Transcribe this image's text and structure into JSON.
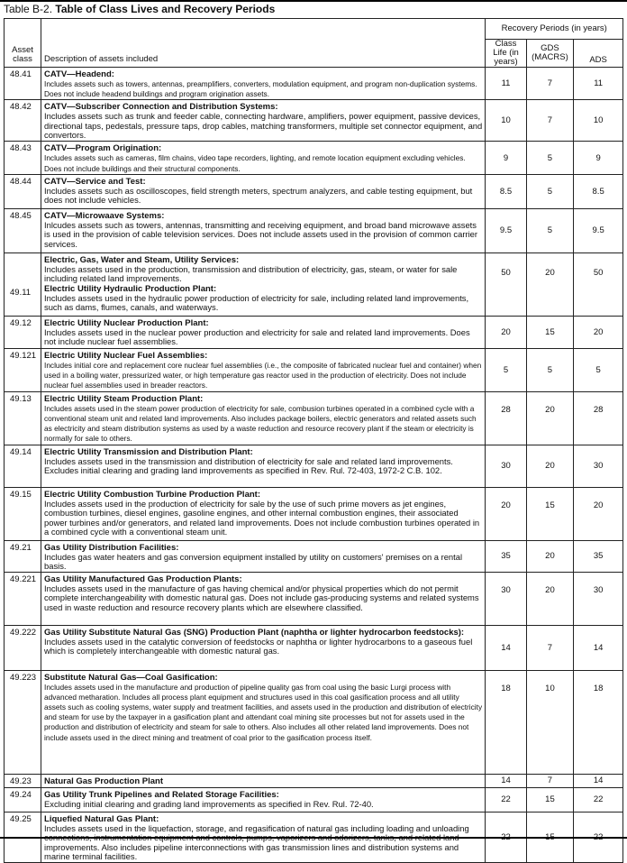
{
  "title": {
    "prefix": "Table B-2.",
    "main": "Table of Class Lives and Recovery Periods"
  },
  "columns": {
    "asset_class": "Asset class",
    "description": "Description of assets included",
    "recovery_group": "Recovery Periods (in years)",
    "class_life": "Class Life (in years)",
    "gds": "GDS (MACRS)",
    "ads": "ADS"
  },
  "rows": [
    {
      "asset_class": "48.41",
      "small": true,
      "blocks": [
        {
          "heading": "CATV—Headend:",
          "text": "Includes assets such as towers, antennas, preamplifiers, converters, modulation equipment, and program non-duplication systems. Does not include headend buildings and program origination assets."
        }
      ],
      "class_life": "11",
      "gds": "7",
      "ads": "11"
    },
    {
      "asset_class": "48.42",
      "blocks": [
        {
          "heading": "CATV—Subscriber Connection and Distribution Systems:",
          "text": "Includes assets such as trunk and feeder cable, connecting hardware, amplifiers, power equipment, passive devices, directional taps, pedestals, pressure taps, drop cables, matching transformers, multiple set connector equipment, and convertors."
        }
      ],
      "class_life": "10",
      "gds": "7",
      "ads": "10"
    },
    {
      "asset_class": "48.43",
      "small": true,
      "blocks": [
        {
          "heading": "CATV—Program Origination:",
          "text": "Includes assets such as cameras, film chains, video tape recorders, lighting, and remote location equipment excluding vehicles. Does not include buildings and their structural components."
        }
      ],
      "class_life": "9",
      "gds": "5",
      "ads": "9"
    },
    {
      "asset_class": "48.44",
      "blocks": [
        {
          "heading": "CATV—Service and Test:",
          "text": "Includes assets such as oscilloscopes, field strength meters, spectrum analyzers, and cable testing equipment, but does not include vehicles."
        }
      ],
      "class_life": "8.5",
      "gds": "5",
      "ads": "8.5"
    },
    {
      "asset_class": "48.45",
      "blocks": [
        {
          "heading": "CATV—Microwaave Systems:",
          "text": "Inlcudes assets such as towers, antennas, transmitting and receiving equipment, and broad band microwave assets is used in the provision of cable television services. Does not include assets used in the provision of common carrier services."
        }
      ],
      "class_life": "9.5",
      "gds": "5",
      "ads": "9.5"
    },
    {
      "asset_class": "49.11",
      "blocks": [
        {
          "heading": "Electric, Gas, Water and Steam, Utility Services:",
          "text": "Includes assets used in the production, transmission and distribution of electricity, gas, steam, or water for sale including related land improvements."
        },
        {
          "heading": "Electric Utility Hydraulic Production Plant:",
          "text": "Includes assets used in the hydraulic power production of electricity for sale, including related land improvements, such as dams, flumes, canals, and waterways."
        }
      ],
      "class_life": "50",
      "gds": "20",
      "ads": "50"
    },
    {
      "asset_class": "49.12",
      "blocks": [
        {
          "heading": "Electric Utility Nuclear Production Plant:",
          "text": "Includes assets used in the nuclear power production and electricity for sale and related land improvements. Does not include nuclear fuel assemblies."
        }
      ],
      "class_life": "20",
      "gds": "15",
      "ads": "20"
    },
    {
      "asset_class": "49.121",
      "small": true,
      "blocks": [
        {
          "heading": "Electric Utility Nuclear Fuel Assemblies:",
          "text": "Includes initial core and replacement core nuclear fuel assemblies (i.e., the composite of fabricated nuclear fuel and container) when used in a boiling water, pressurized water, or high temperature gas reactor used in the production of electricity. Does not include nuclear fuel assemblies used in breader reactors."
        }
      ],
      "class_life": "5",
      "gds": "5",
      "ads": "5"
    },
    {
      "asset_class": "49.13",
      "small": true,
      "blocks": [
        {
          "heading": "Electric Utility Steam Production Plant:",
          "text": "Includes assets used in the steam power production of electricity for sale, combusion turbines operated in a combined cycle with a conventional steam unit and related land improvements. Also includes package boilers, electric generators and related assets such as electricity and steam distribution systems as used by a waste reduction and resource recovery plant if the steam or electricity is normally for sale to others."
        }
      ],
      "class_life": "28",
      "gds": "20",
      "ads": "28"
    },
    {
      "asset_class": "49.14",
      "blocks": [
        {
          "heading": "Electric Utility Transmission and Distribution Plant:",
          "text": "Includes assets used in the transmission and distribution of electricity for sale and related land improvements. Excludes initial clearing and grading land improvements as specified in Rev. Rul. 72-403, 1972-2 C.B. 102."
        }
      ],
      "class_life": "30",
      "gds": "20",
      "ads": "30"
    },
    {
      "asset_class": "49.15",
      "blocks": [
        {
          "heading": "Electric Utility Combustion Turbine Production Plant:",
          "text": "Includes assets used in the production of electricity for sale by the use of such prime movers as jet engines, combustion turbines, diesel engines, gasoline engines, and other internal combustion engines, their associated power turbines and/or generators, and related land improvements. Does not include combustion turbines operated in a combined cycle with a conventional steam unit."
        }
      ],
      "class_life": "20",
      "gds": "15",
      "ads": "20"
    },
    {
      "asset_class": "49.21",
      "blocks": [
        {
          "heading": "Gas Utility Distribution Facilities:",
          "text": "Includes gas water heaters and gas conversion equipment installed by utility on customers' premises on a rental basis."
        }
      ],
      "class_life": "35",
      "gds": "20",
      "ads": "35"
    },
    {
      "asset_class": "49.221",
      "blocks": [
        {
          "heading": "Gas Utility Manufactured Gas Production Plants:",
          "text": "Includes assets used in the manufacture of gas having chemical and/or physical properties which do not permit complete interchangeability with domestic natural gas. Does not include gas-producing systems and related systems used in waste reduction and resource recovery plants which are elsewhere classified."
        }
      ],
      "class_life": "30",
      "gds": "20",
      "ads": "30"
    },
    {
      "asset_class": "49.222",
      "blocks": [
        {
          "heading": "Gas Utility Substitute Natural Gas (SNG) Production Plant (naphtha or lighter hydrocarbon feedstocks):",
          "text": "Includes assets used in the catalytic conversion of feedstocks or naphtha or lighter hydrocarbons to a gaseous fuel which is completely interchangeable with domestic natural gas."
        }
      ],
      "class_life": "14",
      "gds": "7",
      "ads": "14"
    },
    {
      "asset_class": "49.223",
      "small": true,
      "blocks": [
        {
          "heading": "Substitute Natural Gas—Coal Gasification:",
          "text": "Includes assets used in the manufacture and production of pipeline quality gas from coal using the basic Lurgi process with advanced metharation. Includes all process plant equipment and structures used in this coal gasification process and all utility assets such as cooling systems, water supply and treatment facilities, and assets used in the production and distribution of electricity and steam for use by the taxpayer in a gasification plant and attendant coal mining site processes but not for assets used in the production and distribution of electricity and steam for sale to others. Also includes all other related land improvements. Does not include assets used in the direct mining and treatment of coal prior to the gasification process itself."
        }
      ],
      "class_life": "18",
      "gds": "10",
      "ads": "18"
    },
    {
      "asset_class": "49.23",
      "blocks": [
        {
          "heading": "Natural Gas Production Plant",
          "text": ""
        }
      ],
      "class_life": "14",
      "gds": "7",
      "ads": "14"
    },
    {
      "asset_class": "49.24",
      "blocks": [
        {
          "heading": "Gas Utility Trunk Pipelines and Related Storage Facilities:",
          "text": "Excluding initial clearing and grading land improvements as specified in Rev. Rul. 72-40."
        }
      ],
      "class_life": "22",
      "gds": "15",
      "ads": "22"
    },
    {
      "asset_class": "49.25",
      "blocks": [
        {
          "heading": "Liquefied Natural Gas Plant:",
          "text": "Includes assets used in the liquefaction, storage, and regasification of natural gas including loading and unloading connections, instrumentation equipment and controls, pumps, vaporizers and odorizers, tanks, and related land improvements. Also includes pipeline interconnections with gas transmission lines and distribution systems and marine terminal facilities."
        }
      ],
      "class_life": "22",
      "gds": "15",
      "ads": "22"
    }
  ]
}
